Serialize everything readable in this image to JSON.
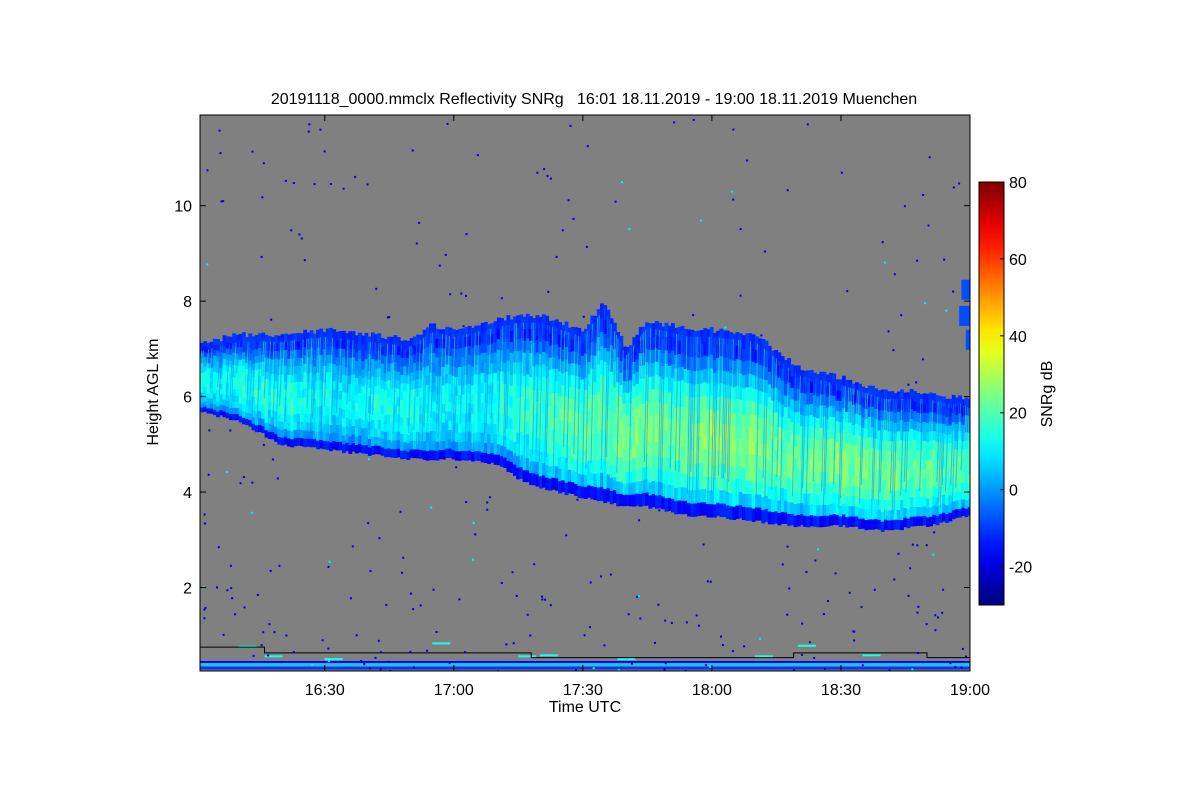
{
  "chart_data": {
    "type": "heatmap",
    "title": "20191118_0000.mmclx Reflectivity SNRg   16:01 18.11.2019 - 19:00 18.11.2019 Muenchen",
    "xlabel": "Time UTC",
    "ylabel": "Height AGL km",
    "x_ticks": [
      "16:30",
      "17:00",
      "17:30",
      "18:00",
      "18:30",
      "19:00"
    ],
    "x_tick_values": [
      30,
      60,
      90,
      120,
      150,
      180
    ],
    "xlim": [
      1,
      180
    ],
    "y_ticks": [
      "2",
      "4",
      "6",
      "8",
      "10"
    ],
    "y_tick_values": [
      2,
      4,
      6,
      8,
      10
    ],
    "ylim": [
      0.25,
      11.9
    ],
    "colorbar": {
      "label": "SNRg dB",
      "ticks": [
        "-20",
        "0",
        "20",
        "40",
        "60",
        "80"
      ],
      "tick_values": [
        -20,
        0,
        20,
        40,
        60,
        80
      ],
      "range": [
        -30,
        80
      ],
      "colormap": "jet"
    },
    "background_color": "#808080",
    "cloud_layer": {
      "time_minutes": [
        1,
        10,
        20,
        30,
        40,
        50,
        55,
        60,
        70,
        75,
        80,
        90,
        95,
        100,
        105,
        110,
        115,
        120,
        130,
        140,
        150,
        160,
        170,
        175,
        178,
        180
      ],
      "top_km": [
        7.1,
        7.3,
        7.3,
        7.4,
        7.3,
        7.2,
        7.5,
        7.4,
        7.6,
        7.7,
        7.7,
        7.4,
        8.0,
        7.0,
        7.6,
        7.5,
        7.4,
        7.4,
        7.3,
        6.6,
        6.4,
        6.1,
        6.1,
        6.0,
        6.0,
        5.9
      ],
      "base_km": [
        5.7,
        5.5,
        5.0,
        4.9,
        4.8,
        4.7,
        4.7,
        4.7,
        4.6,
        4.3,
        4.1,
        3.9,
        3.8,
        3.7,
        3.7,
        3.6,
        3.5,
        3.5,
        3.4,
        3.3,
        3.3,
        3.2,
        3.3,
        3.4,
        3.5,
        3.5
      ],
      "peak_snr_db": [
        10,
        14,
        15,
        12,
        12,
        14,
        11,
        10,
        14,
        16,
        18,
        22,
        22,
        25,
        25,
        24,
        24,
        26,
        26,
        22,
        26,
        24,
        22,
        22,
        20,
        20
      ]
    }
  }
}
